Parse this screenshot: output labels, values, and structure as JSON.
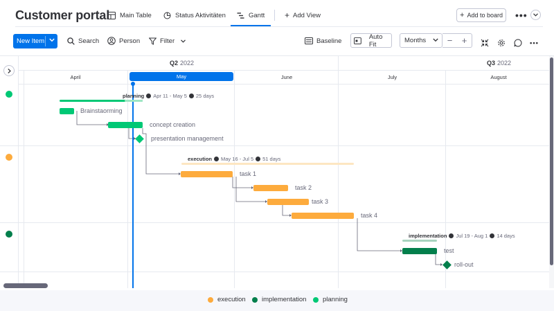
{
  "header": {
    "title": "Customer portal",
    "tabs": [
      {
        "label": "Main Table",
        "icon": "table-icon"
      },
      {
        "label": "Status Aktivitäten",
        "icon": "chart-icon"
      },
      {
        "label": "Gantt",
        "icon": "gantt-icon",
        "active": true
      }
    ],
    "add_view_label": "Add View",
    "add_to_board_label": "Add to board",
    "more_label": "•••"
  },
  "toolbar": {
    "new_item_label": "New Item",
    "search_label": "Search",
    "person_label": "Person",
    "filter_label": "Filter",
    "baseline_label": "Baseline",
    "autofit_label": "Auto Fit",
    "zoom_select_value": "Months",
    "zoom_out_label": "−",
    "zoom_in_label": "+",
    "more_label": "•••"
  },
  "timeline": {
    "quarters": [
      {
        "label": "Q2",
        "year": "2022"
      },
      {
        "label": "Q3",
        "year": "2022"
      }
    ],
    "months": [
      "April",
      "May",
      "June",
      "July",
      "August"
    ],
    "current_month": "May"
  },
  "groups": [
    {
      "name": "planning",
      "color": "#00c875",
      "range": "Apr 11 - May 5",
      "duration": "25 days",
      "tasks": [
        {
          "name": "Brainstaorming",
          "type": "bar"
        },
        {
          "name": "concept creation",
          "type": "bar"
        },
        {
          "name": "presentation management",
          "type": "milestone"
        }
      ]
    },
    {
      "name": "execution",
      "color": "#fdab3d",
      "range": "May 16 - Jul 5",
      "duration": "51 days",
      "tasks": [
        {
          "name": "task 1",
          "type": "bar"
        },
        {
          "name": "task 2",
          "type": "bar"
        },
        {
          "name": "task 3",
          "type": "bar"
        },
        {
          "name": "task 4",
          "type": "bar"
        }
      ]
    },
    {
      "name": "implementation",
      "color": "#037f4c",
      "range": "Jul 19 - Aug 1",
      "duration": "14 days",
      "tasks": [
        {
          "name": "test",
          "type": "bar"
        },
        {
          "name": "roll-out",
          "type": "milestone"
        }
      ]
    }
  ],
  "legend": [
    {
      "label": "execution",
      "color": "#fdab3d"
    },
    {
      "label": "implementation",
      "color": "#037f4c"
    },
    {
      "label": "planning",
      "color": "#00c875"
    }
  ]
}
